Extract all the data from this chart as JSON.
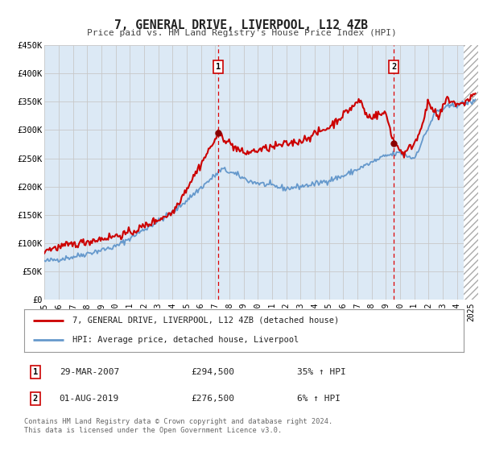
{
  "title": "7, GENERAL DRIVE, LIVERPOOL, L12 4ZB",
  "subtitle": "Price paid vs. HM Land Registry's House Price Index (HPI)",
  "background_color": "#ffffff",
  "plot_bg_color": "#dce9f5",
  "grid_color": "#c8c8c8",
  "ylim": [
    0,
    450000
  ],
  "yticks": [
    0,
    50000,
    100000,
    150000,
    200000,
    250000,
    300000,
    350000,
    400000,
    450000
  ],
  "ytick_labels": [
    "£0",
    "£50K",
    "£100K",
    "£150K",
    "£200K",
    "£250K",
    "£300K",
    "£350K",
    "£400K",
    "£450K"
  ],
  "xlim_start": 1995.0,
  "xlim_end": 2025.5,
  "xticks": [
    1995,
    1996,
    1997,
    1998,
    1999,
    2000,
    2001,
    2002,
    2003,
    2004,
    2005,
    2006,
    2007,
    2008,
    2009,
    2010,
    2011,
    2012,
    2013,
    2014,
    2015,
    2016,
    2017,
    2018,
    2019,
    2020,
    2021,
    2022,
    2023,
    2024,
    2025
  ],
  "property_color": "#cc0000",
  "hpi_color": "#6699cc",
  "marker1_x": 2007.23,
  "marker1_y": 294500,
  "marker2_x": 2019.58,
  "marker2_y": 276500,
  "legend_label1": "7, GENERAL DRIVE, LIVERPOOL, L12 4ZB (detached house)",
  "legend_label2": "HPI: Average price, detached house, Liverpool",
  "table_row1_num": "1",
  "table_row1_date": "29-MAR-2007",
  "table_row1_price": "£294,500",
  "table_row1_hpi": "35% ↑ HPI",
  "table_row2_num": "2",
  "table_row2_date": "01-AUG-2019",
  "table_row2_price": "£276,500",
  "table_row2_hpi": "6% ↑ HPI",
  "footnote1": "Contains HM Land Registry data © Crown copyright and database right 2024.",
  "footnote2": "This data is licensed under the Open Government Licence v3.0.",
  "hatch_start": 2024.5
}
